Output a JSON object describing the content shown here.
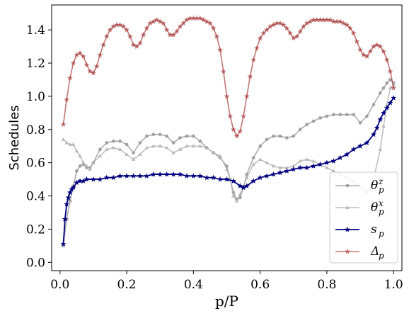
{
  "chart_data": {
    "type": "line",
    "title": "",
    "xlabel": "p/P",
    "ylabel": "Schedules",
    "xlim": [
      -0.025,
      1.025
    ],
    "ylim": [
      -0.05,
      1.55
    ],
    "xticks": [
      0.0,
      0.2,
      0.4,
      0.6,
      0.8,
      1.0
    ],
    "xtick_labels": [
      "0.0",
      "0.2",
      "0.4",
      "0.6",
      "0.8",
      "1.0"
    ],
    "yticks": [
      0.0,
      0.2,
      0.4,
      0.6,
      0.8,
      1.0,
      1.2,
      1.4
    ],
    "ytick_labels": [
      "0.0",
      "0.2",
      "0.4",
      "0.6",
      "0.8",
      "1.0",
      "1.2",
      "1.4"
    ],
    "grid": false,
    "legend_position": "lower-right",
    "series": [
      {
        "name": "θ_p^z",
        "legend_label": "θ",
        "legend_sup": "z",
        "legend_sub": "p",
        "color": "#999999",
        "marker": "circle",
        "x": [
          0.01,
          0.02,
          0.03,
          0.04,
          0.05,
          0.06,
          0.07,
          0.08,
          0.09,
          0.1,
          0.12,
          0.14,
          0.16,
          0.18,
          0.2,
          0.22,
          0.24,
          0.26,
          0.28,
          0.3,
          0.32,
          0.34,
          0.36,
          0.38,
          0.4,
          0.42,
          0.44,
          0.46,
          0.48,
          0.5,
          0.51,
          0.52,
          0.53,
          0.54,
          0.55,
          0.56,
          0.58,
          0.6,
          0.62,
          0.64,
          0.66,
          0.68,
          0.7,
          0.72,
          0.74,
          0.76,
          0.78,
          0.8,
          0.82,
          0.84,
          0.86,
          0.88,
          0.9,
          0.92,
          0.94,
          0.96,
          0.97,
          0.98,
          0.99,
          1.0
        ],
        "y": [
          0.1,
          0.26,
          0.37,
          0.46,
          0.55,
          0.58,
          0.59,
          0.57,
          0.57,
          0.6,
          0.68,
          0.72,
          0.73,
          0.73,
          0.71,
          0.66,
          0.72,
          0.76,
          0.77,
          0.77,
          0.76,
          0.72,
          0.75,
          0.76,
          0.76,
          0.73,
          0.69,
          0.66,
          0.63,
          0.58,
          0.5,
          0.42,
          0.38,
          0.39,
          0.45,
          0.53,
          0.63,
          0.7,
          0.74,
          0.76,
          0.76,
          0.75,
          0.76,
          0.8,
          0.83,
          0.85,
          0.87,
          0.88,
          0.89,
          0.89,
          0.89,
          0.89,
          0.84,
          0.88,
          0.95,
          1.02,
          1.05,
          1.08,
          1.1,
          1.08
        ]
      },
      {
        "name": "θ_p^x",
        "legend_label": "θ",
        "legend_sup": "x",
        "legend_sub": "p",
        "color": "#b3b3b3",
        "marker": "triangle",
        "x": [
          0.01,
          0.02,
          0.03,
          0.04,
          0.05,
          0.06,
          0.07,
          0.08,
          0.09,
          0.1,
          0.12,
          0.14,
          0.16,
          0.18,
          0.2,
          0.22,
          0.24,
          0.26,
          0.28,
          0.3,
          0.32,
          0.34,
          0.36,
          0.38,
          0.4,
          0.42,
          0.44,
          0.46,
          0.48,
          0.5,
          0.51,
          0.52,
          0.53,
          0.54,
          0.55,
          0.56,
          0.58,
          0.6,
          0.62,
          0.64,
          0.66,
          0.68,
          0.7,
          0.72,
          0.74,
          0.76,
          0.78,
          0.8,
          0.82,
          0.84,
          0.86,
          0.88,
          0.9,
          0.92,
          0.94,
          0.96,
          0.97,
          0.98,
          0.99,
          1.0
        ],
        "y": [
          0.74,
          0.72,
          0.71,
          0.71,
          0.67,
          0.64,
          0.6,
          0.58,
          0.56,
          0.6,
          0.64,
          0.68,
          0.69,
          0.68,
          0.65,
          0.62,
          0.65,
          0.69,
          0.7,
          0.7,
          0.69,
          0.66,
          0.68,
          0.7,
          0.7,
          0.7,
          0.69,
          0.66,
          0.64,
          0.56,
          0.5,
          0.4,
          0.37,
          0.41,
          0.46,
          0.51,
          0.59,
          0.62,
          0.6,
          0.58,
          0.57,
          0.57,
          0.58,
          0.61,
          0.62,
          0.61,
          0.59,
          0.57,
          0.55,
          0.53,
          0.51,
          0.49,
          0.45,
          0.42,
          0.5,
          0.68,
          0.82,
          0.95,
          1.05,
          1.07
        ]
      },
      {
        "name": "s_p",
        "legend_label": "s",
        "legend_sup": "",
        "legend_sub": "p",
        "color": "#000080",
        "marker": "star",
        "x": [
          0.01,
          0.015,
          0.02,
          0.025,
          0.03,
          0.035,
          0.04,
          0.05,
          0.06,
          0.07,
          0.08,
          0.1,
          0.12,
          0.14,
          0.16,
          0.18,
          0.2,
          0.22,
          0.24,
          0.26,
          0.28,
          0.3,
          0.32,
          0.34,
          0.36,
          0.38,
          0.4,
          0.42,
          0.44,
          0.46,
          0.48,
          0.5,
          0.52,
          0.54,
          0.55,
          0.56,
          0.58,
          0.6,
          0.62,
          0.64,
          0.66,
          0.68,
          0.7,
          0.72,
          0.74,
          0.76,
          0.78,
          0.8,
          0.82,
          0.84,
          0.86,
          0.88,
          0.9,
          0.92,
          0.94,
          0.95,
          0.96,
          0.97,
          0.98,
          0.99,
          1.0
        ],
        "y": [
          0.11,
          0.26,
          0.35,
          0.39,
          0.42,
          0.44,
          0.45,
          0.48,
          0.49,
          0.49,
          0.5,
          0.5,
          0.5,
          0.51,
          0.51,
          0.52,
          0.52,
          0.52,
          0.52,
          0.52,
          0.53,
          0.53,
          0.53,
          0.53,
          0.53,
          0.52,
          0.52,
          0.52,
          0.51,
          0.51,
          0.5,
          0.5,
          0.49,
          0.46,
          0.45,
          0.46,
          0.49,
          0.51,
          0.52,
          0.53,
          0.54,
          0.55,
          0.56,
          0.57,
          0.57,
          0.58,
          0.59,
          0.6,
          0.61,
          0.63,
          0.65,
          0.68,
          0.7,
          0.72,
          0.77,
          0.81,
          0.86,
          0.9,
          0.93,
          0.96,
          0.99
        ]
      },
      {
        "name": "Δ_p",
        "legend_label": "Δ",
        "legend_sup": "",
        "legend_sub": "p",
        "color": "#a83c3c",
        "marker": "star",
        "x": [
          0.01,
          0.02,
          0.03,
          0.04,
          0.05,
          0.06,
          0.07,
          0.08,
          0.09,
          0.1,
          0.11,
          0.12,
          0.13,
          0.14,
          0.15,
          0.16,
          0.17,
          0.18,
          0.19,
          0.2,
          0.21,
          0.22,
          0.23,
          0.24,
          0.25,
          0.26,
          0.27,
          0.28,
          0.29,
          0.3,
          0.31,
          0.32,
          0.33,
          0.34,
          0.35,
          0.36,
          0.37,
          0.38,
          0.39,
          0.4,
          0.41,
          0.42,
          0.43,
          0.44,
          0.45,
          0.46,
          0.47,
          0.48,
          0.49,
          0.5,
          0.51,
          0.52,
          0.53,
          0.54,
          0.55,
          0.56,
          0.57,
          0.58,
          0.59,
          0.6,
          0.61,
          0.62,
          0.63,
          0.64,
          0.65,
          0.66,
          0.67,
          0.68,
          0.69,
          0.7,
          0.71,
          0.72,
          0.73,
          0.74,
          0.75,
          0.76,
          0.77,
          0.78,
          0.79,
          0.8,
          0.81,
          0.82,
          0.83,
          0.84,
          0.85,
          0.86,
          0.87,
          0.88,
          0.89,
          0.9,
          0.91,
          0.92,
          0.93,
          0.94,
          0.95,
          0.96,
          0.97,
          0.98,
          0.99,
          1.0
        ],
        "y": [
          0.83,
          0.98,
          1.11,
          1.2,
          1.25,
          1.26,
          1.24,
          1.19,
          1.15,
          1.14,
          1.18,
          1.25,
          1.31,
          1.36,
          1.4,
          1.42,
          1.43,
          1.43,
          1.42,
          1.4,
          1.36,
          1.31,
          1.3,
          1.32,
          1.37,
          1.41,
          1.44,
          1.45,
          1.46,
          1.45,
          1.44,
          1.4,
          1.37,
          1.37,
          1.39,
          1.42,
          1.44,
          1.46,
          1.47,
          1.47,
          1.47,
          1.47,
          1.46,
          1.45,
          1.44,
          1.41,
          1.36,
          1.28,
          1.15,
          1.0,
          0.88,
          0.8,
          0.76,
          0.79,
          0.88,
          1.0,
          1.12,
          1.22,
          1.29,
          1.35,
          1.38,
          1.4,
          1.42,
          1.43,
          1.44,
          1.44,
          1.43,
          1.41,
          1.38,
          1.35,
          1.36,
          1.39,
          1.42,
          1.44,
          1.45,
          1.46,
          1.46,
          1.46,
          1.46,
          1.46,
          1.46,
          1.45,
          1.45,
          1.45,
          1.44,
          1.43,
          1.41,
          1.38,
          1.33,
          1.28,
          1.25,
          1.24,
          1.27,
          1.3,
          1.31,
          1.3,
          1.27,
          1.22,
          1.15,
          1.05
        ]
      }
    ]
  }
}
